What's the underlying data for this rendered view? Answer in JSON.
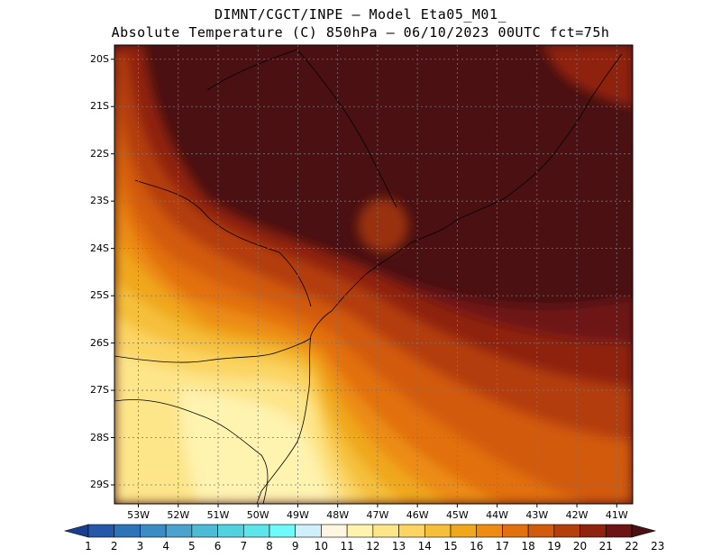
{
  "header": {
    "line1": "DIMNT/CGCT/INPE –  Model Eta05_M01_",
    "line2": "Absolute Temperature (C) 850hPa –  06/10/2023 00UTC fct=75h"
  },
  "map": {
    "lat_labels": [
      "20S",
      "21S",
      "22S",
      "23S",
      "24S",
      "25S",
      "26S",
      "27S",
      "28S",
      "29S"
    ],
    "lon_labels": [
      "53W",
      "52W",
      "51W",
      "50W",
      "49W",
      "48W",
      "47W",
      "46W",
      "45W",
      "44W",
      "43W",
      "42W",
      "41W"
    ],
    "lat_range": [
      -29.4,
      -19.7
    ],
    "lon_range": [
      -53.6,
      -40.6
    ],
    "grid": true
  },
  "colorbar": {
    "labels": [
      "1",
      "2",
      "3",
      "4",
      "5",
      "6",
      "7",
      "8",
      "9",
      "10",
      "11",
      "12",
      "13",
      "14",
      "15",
      "16",
      "17",
      "18",
      "19",
      "20",
      "21",
      "22",
      "23"
    ],
    "colors": [
      "#1b3d8f",
      "#2558a8",
      "#2c73b8",
      "#3a8cc4",
      "#4aa3cc",
      "#4cbcd6",
      "#52d2e0",
      "#5ce6ec",
      "#6efafa",
      "#cfeffa",
      "#fff5e0",
      "#fff3b0",
      "#fde58a",
      "#fbd462",
      "#f5bf3a",
      "#f0a71c",
      "#ec8c14",
      "#e2700e",
      "#d25a0c",
      "#b43e0c",
      "#8f240c",
      "#6e1414",
      "#4a1012"
    ]
  }
}
